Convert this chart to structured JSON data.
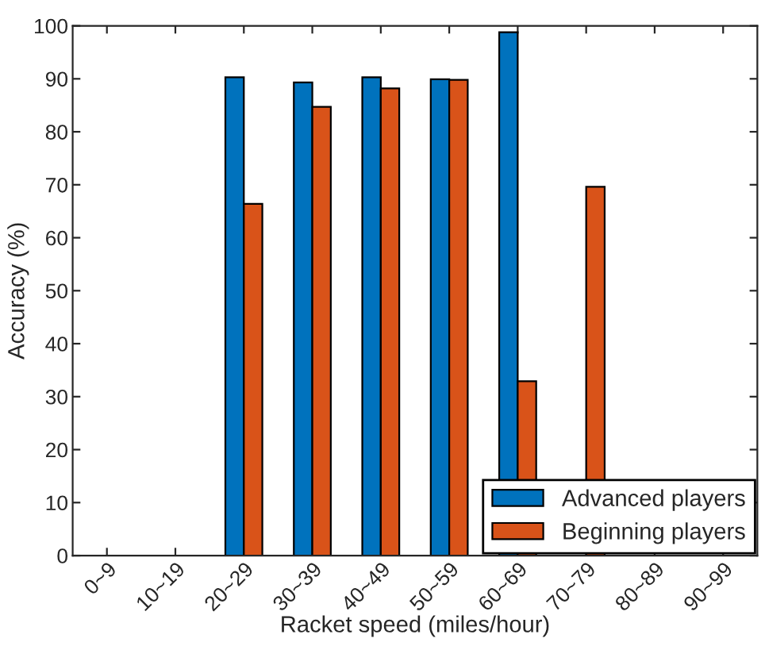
{
  "chart_data": {
    "type": "bar",
    "xlabel": "Racket speed (miles/hour)",
    "ylabel": "Accuracy (%)",
    "categories": [
      "0~9",
      "10~19",
      "20~29",
      "30~39",
      "40~49",
      "50~59",
      "60~69",
      "70~79",
      "80~89",
      "90~99"
    ],
    "series": [
      {
        "name": "Advanced players",
        "color": "#0072bd",
        "values": [
          null,
          null,
          90.3,
          89.3,
          90.3,
          89.9,
          98.8,
          null,
          null,
          null
        ]
      },
      {
        "name": "Beginning players",
        "color": "#d95319",
        "values": [
          null,
          null,
          66.4,
          84.7,
          88.2,
          89.8,
          32.9,
          69.6,
          null,
          null
        ]
      }
    ],
    "ylim": [
      0,
      100
    ],
    "yticks": [
      0,
      10,
      20,
      30,
      40,
      50,
      60,
      70,
      80,
      90,
      100
    ],
    "grid": false,
    "legend": "bottom right"
  }
}
